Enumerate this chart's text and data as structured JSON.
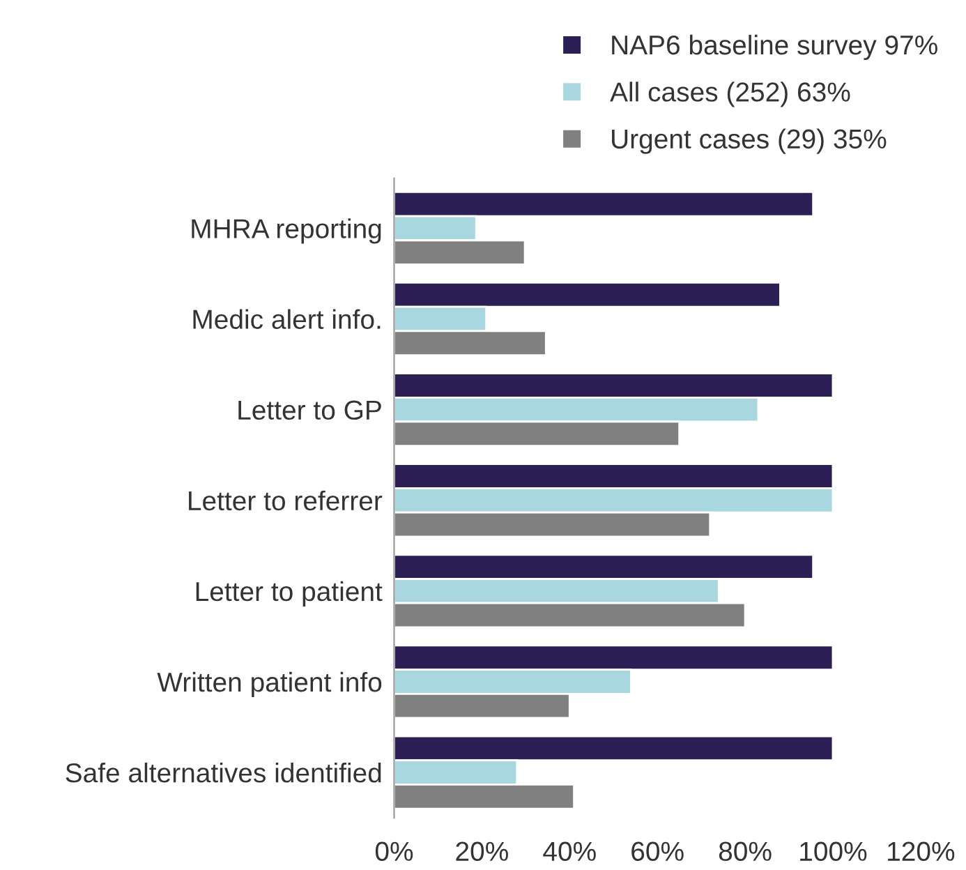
{
  "chart_data": {
    "type": "bar",
    "orientation": "horizontal",
    "categories": [
      "MHRA reporting",
      "Medic alert info.",
      "Letter to GP",
      "Letter to referrer",
      "Letter to patient",
      "Written patient info",
      "Safe alternatives identified"
    ],
    "series": [
      {
        "name": "NAP6 baseline survey 97%",
        "color": "#2b1f55",
        "values": [
          95.5,
          88,
          100,
          100,
          95.5,
          100,
          100
        ]
      },
      {
        "name": "All cases (252) 63%",
        "color": "#a9d7e0",
        "values": [
          18.7,
          21,
          83,
          100,
          74,
          54,
          28
        ]
      },
      {
        "name": "Urgent cases (29) 35%",
        "color": "#808080",
        "values": [
          29.8,
          34.6,
          65,
          72,
          80,
          40,
          41
        ]
      }
    ],
    "xlim": [
      0,
      120
    ],
    "xticks": [
      {
        "value": 0,
        "label": "0%"
      },
      {
        "value": 20,
        "label": "20%"
      },
      {
        "value": 40,
        "label": "40%"
      },
      {
        "value": 60,
        "label": "60%"
      },
      {
        "value": 80,
        "label": "80%"
      },
      {
        "value": 100,
        "label": "100%"
      },
      {
        "value": 120,
        "label": "120%"
      }
    ],
    "grid": false,
    "legend": "top right"
  }
}
